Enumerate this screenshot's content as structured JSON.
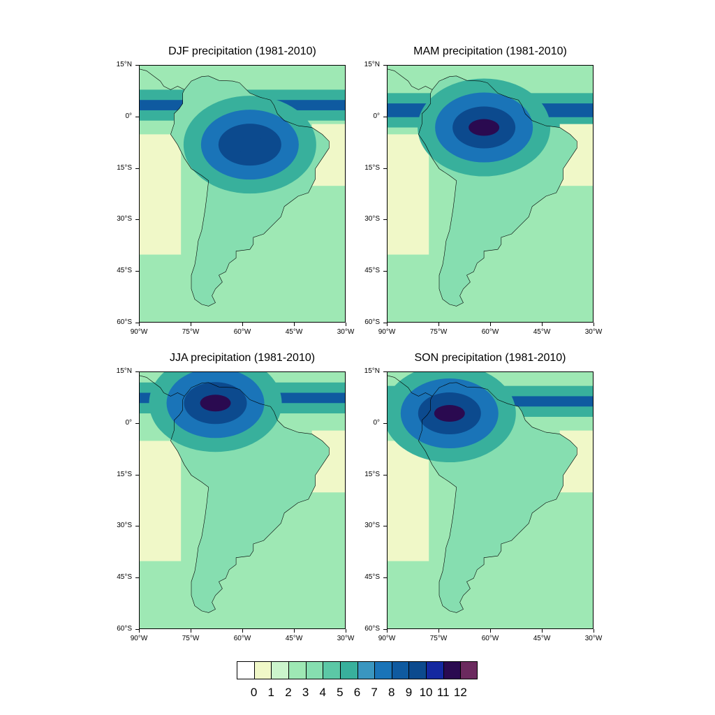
{
  "panels": [
    {
      "id": "djf",
      "title": "DJF precipitation (1981-2010)",
      "wet_center": [
        -58,
        -8
      ],
      "north_band": [
        2,
        5
      ],
      "intensity": 10
    },
    {
      "id": "mam",
      "title": "MAM precipitation (1981-2010)",
      "wet_center": [
        -62,
        -3
      ],
      "north_band": [
        0,
        4
      ],
      "intensity": 12
    },
    {
      "id": "jja",
      "title": "JJA precipitation (1981-2010)",
      "wet_center": [
        -68,
        6
      ],
      "north_band": [
        6,
        9
      ],
      "intensity": 12
    },
    {
      "id": "son",
      "title": "SON precipitation (1981-2010)",
      "wet_center": [
        -72,
        3
      ],
      "north_band": [
        5,
        8
      ],
      "intensity": 12
    }
  ],
  "lat_ticks": [
    "15°N",
    "0°",
    "15°S",
    "30°S",
    "45°S",
    "60°S"
  ],
  "lon_ticks": [
    "90°W",
    "75°W",
    "60°W",
    "45°W",
    "30°W"
  ],
  "lat_range": [
    15,
    -60
  ],
  "lon_range": [
    -90,
    -30
  ],
  "colorbar": {
    "labels": [
      "0",
      "1",
      "2",
      "3",
      "4",
      "5",
      "6",
      "7",
      "8",
      "9",
      "10",
      "11",
      "12"
    ],
    "colors": [
      "#ffffff",
      "#f0f8c8",
      "#ccf5cc",
      "#9ee8b4",
      "#86deb0",
      "#5cc8a6",
      "#38b09c",
      "#3a96c0",
      "#1a74b8",
      "#0f5aa0",
      "#0c4a8e",
      "#1428a0",
      "#2a0a50",
      "#6b2a5e"
    ]
  }
}
